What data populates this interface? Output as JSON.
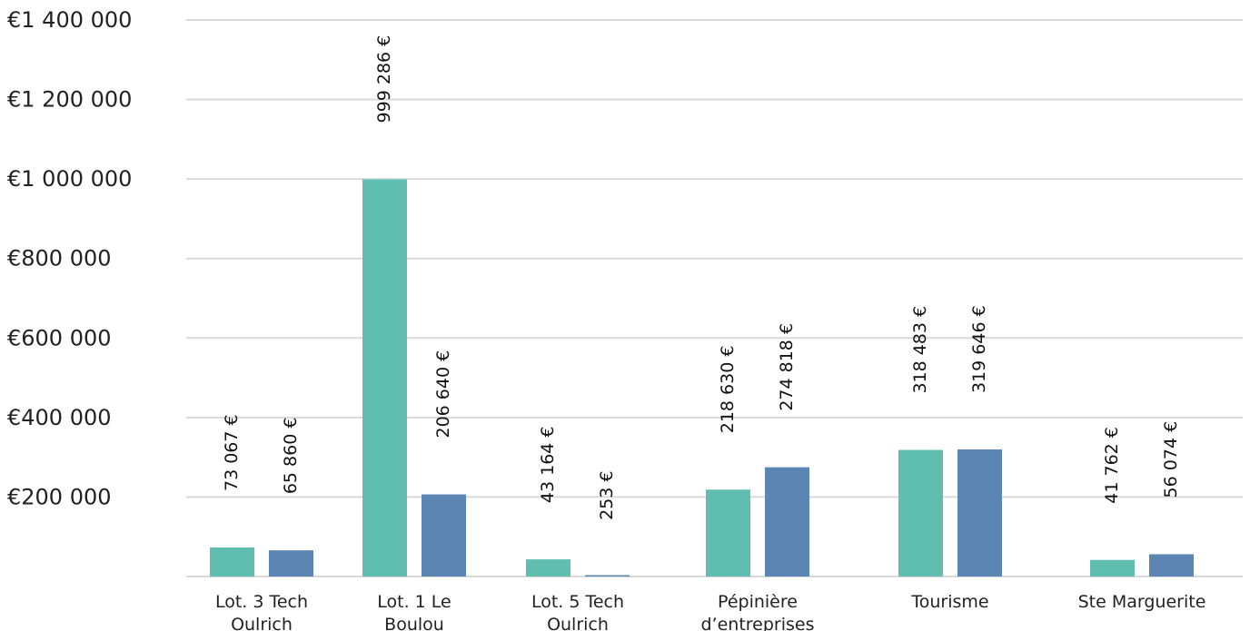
{
  "chart_data": {
    "type": "bar",
    "categories": [
      [
        "Lot. 3 Tech",
        "Oulrich"
      ],
      [
        "Lot. 1  Le",
        "Boulou"
      ],
      [
        "Lot. 5 Tech",
        "Oulrich"
      ],
      [
        "Pépinière",
        "d’entreprises"
      ],
      [
        "Tourisme"
      ],
      [
        "Ste Marguerite"
      ]
    ],
    "series": [
      {
        "values": [
          73067,
          999286,
          43164,
          218630,
          318483,
          41762
        ],
        "labels": [
          "73 067 €",
          "999 286 €",
          "43 164  €",
          "218 630 €",
          "318 483 €",
          "41 762 €"
        ],
        "color": "#5fbeb0"
      },
      {
        "values": [
          65860,
          206640,
          253,
          274818,
          319646,
          56074
        ],
        "labels": [
          "65 860 €",
          "206 640 €",
          "253 €",
          "274 818 €",
          "319 646 €",
          "56 074 €"
        ],
        "color": "#5b86b4"
      }
    ],
    "ylim": [
      0,
      1400000
    ],
    "yticks": [
      200000,
      400000,
      600000,
      800000,
      1000000,
      1200000,
      1400000
    ],
    "ytick_labels": [
      "€200 000",
      "€400 000",
      "€600 000",
      "€800 000",
      "€1 000 000",
      "€1 200 000",
      "€1 400 000"
    ],
    "grid": true,
    "title": "",
    "xlabel": "",
    "ylabel": "",
    "gridline_color": "#d9d9d9"
  }
}
